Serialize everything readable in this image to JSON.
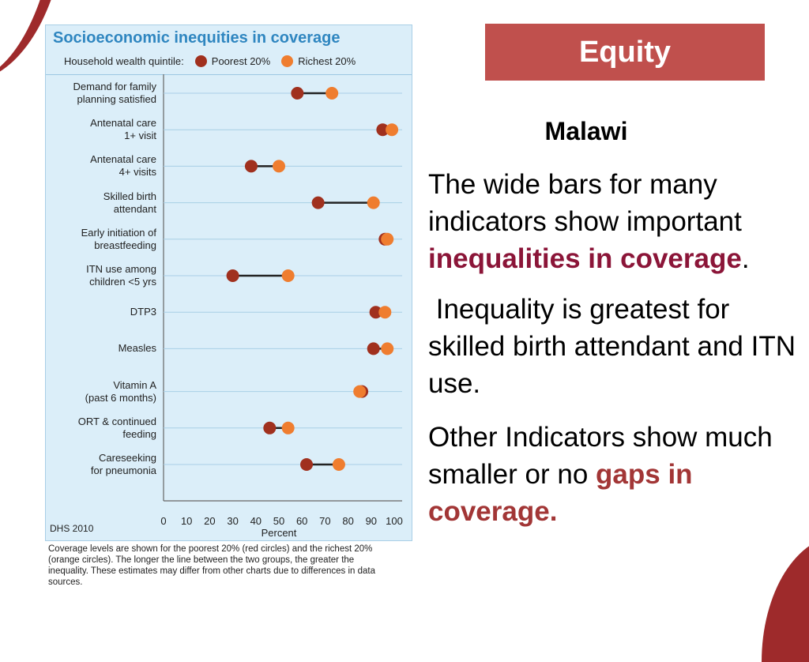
{
  "slide": {
    "heading": "Equity",
    "country": "Malawi",
    "paragraph1": {
      "text_before": "The wide bars for many indicators show important ",
      "highlight": "inequalities in coverage",
      "text_after": "."
    },
    "paragraph2": " Inequality is greatest for skilled birth attendant and ITN use.",
    "paragraph3": {
      "text_before": "Other Indicators show much smaller or no ",
      "highlight": "gaps in coverage."
    },
    "colors": {
      "banner": "#c0504d",
      "highlight1": "#8b1538",
      "highlight2": "#a23636",
      "accent": "#9e2a2b"
    }
  },
  "chart_data": {
    "type": "scatter",
    "title": "Socioeconomic inequities in coverage",
    "legend_title": "Household wealth quintile:",
    "legend_placement": "top",
    "xlabel": "Percent",
    "xlim": [
      0,
      100
    ],
    "xticks": [
      0,
      10,
      20,
      30,
      40,
      50,
      60,
      70,
      80,
      90,
      100
    ],
    "grid": true,
    "source": "DHS 2010",
    "categories": [
      "Demand for family\nplanning satisfied",
      "Antenatal care\n1+ visit",
      "Antenatal care\n4+ visits",
      "Skilled birth\nattendant",
      "Early initiation of\nbreastfeeding",
      "ITN use among\nchildren <5 yrs",
      "DTP3",
      "Measles",
      "Vitamin A\n(past 6 months)",
      "ORT & continued\nfeeding",
      "Careseeking\nfor pneumonia"
    ],
    "series": [
      {
        "name": "Poorest 20%",
        "color": "#a0301e",
        "values": [
          58,
          95,
          38,
          67,
          96,
          30,
          92,
          91,
          86,
          46,
          62
        ]
      },
      {
        "name": "Richest 20%",
        "color": "#ef7d2f",
        "values": [
          73,
          99,
          50,
          91,
          97,
          54,
          96,
          97,
          85,
          54,
          76
        ]
      }
    ],
    "note": "Coverage levels are shown for the poorest 20% (red circles) and the richest 20% (orange circles). The longer the line between the two groups, the greater the inequality. These estimates may differ from other charts due to differences in data sources."
  }
}
